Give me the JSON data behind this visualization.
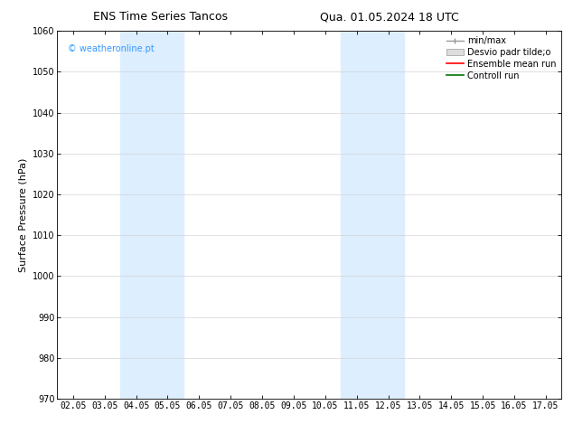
{
  "title_left": "ENS Time Series Tancos",
  "title_right": "Qua. 01.05.2024 18 UTC",
  "ylabel": "Surface Pressure (hPa)",
  "ylim": [
    970,
    1060
  ],
  "yticks": [
    970,
    980,
    990,
    1000,
    1010,
    1020,
    1030,
    1040,
    1050,
    1060
  ],
  "xtick_labels": [
    "02.05",
    "03.05",
    "04.05",
    "05.05",
    "06.05",
    "07.05",
    "08.05",
    "09.05",
    "10.05",
    "11.05",
    "12.05",
    "13.05",
    "14.05",
    "15.05",
    "16.05",
    "17.05"
  ],
  "xlim": [
    -0.5,
    15.5
  ],
  "shaded_bands": [
    {
      "xmin": 1.5,
      "xmax": 3.5,
      "color": "#ddeeff"
    },
    {
      "xmin": 8.5,
      "xmax": 10.5,
      "color": "#ddeeff"
    }
  ],
  "watermark": "© weatheronline.pt",
  "watermark_color": "#3399ff",
  "background_color": "#ffffff",
  "grid_color": "#cccccc",
  "title_fontsize": 9,
  "tick_fontsize": 7,
  "ylabel_fontsize": 8,
  "legend_fontsize": 7
}
